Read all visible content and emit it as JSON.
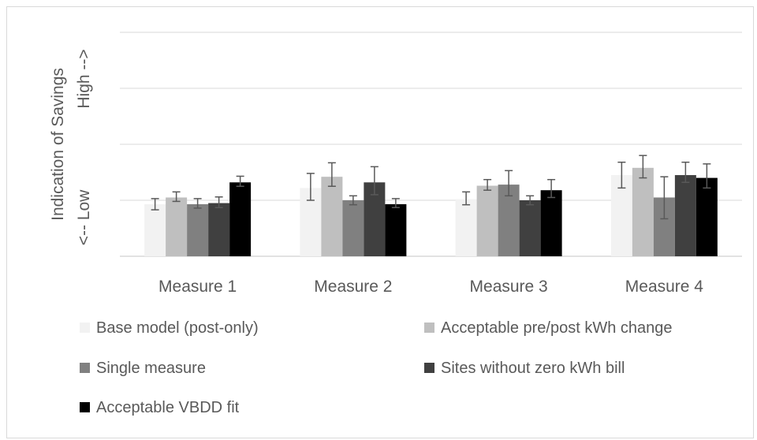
{
  "chart_data": {
    "type": "bar",
    "title": "",
    "categories": [
      "Measure 1",
      "Measure 2",
      "Measure 3",
      "Measure 4"
    ],
    "ylabel_line1": "Indication of Savings",
    "ylabel_line2": "<-- Low",
    "ylabel_line3": "High -->",
    "ylim": [
      0,
      4
    ],
    "gridlines": true,
    "legend_position": "bottom",
    "series": [
      {
        "name": "Base model (post-only)",
        "color": "#f2f2f2",
        "values": [
          0.93,
          1.22,
          1.02,
          1.45
        ],
        "error_low": [
          0.83,
          1.0,
          0.92,
          1.22
        ],
        "error_high": [
          1.03,
          1.48,
          1.15,
          1.68
        ]
      },
      {
        "name": "Acceptable pre/post kWh change",
        "color": "#bfbfbf",
        "values": [
          1.05,
          1.42,
          1.26,
          1.58
        ],
        "error_low": [
          0.98,
          1.25,
          1.18,
          1.4
        ],
        "error_high": [
          1.15,
          1.67,
          1.37,
          1.8
        ]
      },
      {
        "name": "Single measure",
        "color": "#808080",
        "values": [
          0.93,
          1.0,
          1.28,
          1.05
        ],
        "error_low": [
          0.86,
          0.92,
          1.08,
          0.67
        ],
        "error_high": [
          1.03,
          1.08,
          1.53,
          1.42
        ]
      },
      {
        "name": "Sites without zero kWh bill",
        "color": "#404040",
        "values": [
          0.95,
          1.32,
          1.0,
          1.45
        ],
        "error_low": [
          0.87,
          1.1,
          0.92,
          1.32
        ],
        "error_high": [
          1.06,
          1.6,
          1.08,
          1.68
        ]
      },
      {
        "name": "Acceptable VBDD fit",
        "color": "#000000",
        "values": [
          1.32,
          0.93,
          1.18,
          1.4
        ],
        "error_low": [
          1.25,
          0.87,
          1.05,
          1.22
        ],
        "error_high": [
          1.43,
          1.03,
          1.37,
          1.65
        ]
      }
    ],
    "error_bar_color": "#595959",
    "grid_color": "#d9d9d9"
  }
}
